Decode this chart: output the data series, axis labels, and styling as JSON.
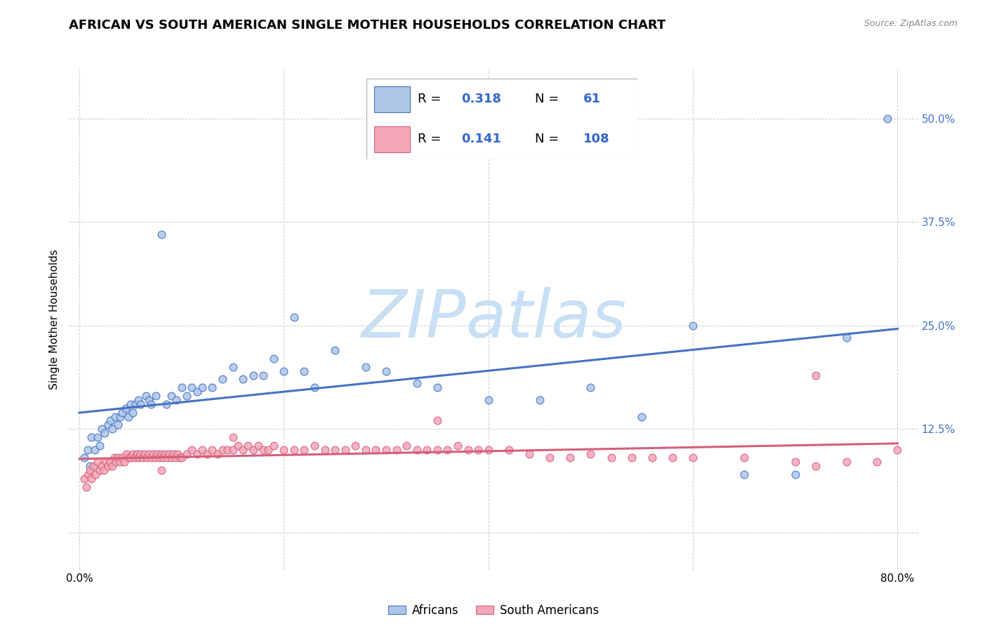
{
  "title": "AFRICAN VS SOUTH AMERICAN SINGLE MOTHER HOUSEHOLDS CORRELATION CHART",
  "source": "Source: ZipAtlas.com",
  "ylabel": "Single Mother Households",
  "african_R": 0.318,
  "african_N": 61,
  "south_american_R": 0.141,
  "south_american_N": 108,
  "african_fill_color": "#aec6e8",
  "african_edge_color": "#4472c4",
  "sa_fill_color": "#f4a7b9",
  "sa_edge_color": "#d45f7a",
  "african_line_color": "#4472c4",
  "sa_line_color": "#d45f7a",
  "legend_text_color": "#3366cc",
  "watermark_color": "#c8dff5",
  "grid_color": "#cccccc",
  "background_color": "#ffffff",
  "title_fontsize": 13,
  "tick_fontsize": 11,
  "ylabel_fontsize": 11,
  "legend_fontsize": 13,
  "ytick_positions": [
    0.0,
    0.125,
    0.25,
    0.375,
    0.5
  ],
  "ytick_labels": [
    "",
    "12.5%",
    "25.0%",
    "37.5%",
    "50.0%"
  ],
  "xlim": [
    -0.01,
    0.82
  ],
  "ylim": [
    -0.045,
    0.56
  ],
  "african_x": [
    0.005,
    0.008,
    0.01,
    0.012,
    0.015,
    0.018,
    0.02,
    0.022,
    0.025,
    0.028,
    0.03,
    0.032,
    0.035,
    0.038,
    0.04,
    0.042,
    0.045,
    0.048,
    0.05,
    0.052,
    0.055,
    0.058,
    0.06,
    0.065,
    0.068,
    0.07,
    0.075,
    0.08,
    0.085,
    0.09,
    0.095,
    0.1,
    0.105,
    0.11,
    0.115,
    0.12,
    0.13,
    0.14,
    0.15,
    0.16,
    0.17,
    0.18,
    0.19,
    0.2,
    0.21,
    0.22,
    0.23,
    0.25,
    0.28,
    0.3,
    0.33,
    0.35,
    0.4,
    0.45,
    0.5,
    0.55,
    0.6,
    0.65,
    0.7,
    0.75,
    0.79
  ],
  "african_y": [
    0.09,
    0.1,
    0.08,
    0.115,
    0.1,
    0.115,
    0.105,
    0.125,
    0.12,
    0.13,
    0.135,
    0.125,
    0.14,
    0.13,
    0.14,
    0.145,
    0.15,
    0.14,
    0.155,
    0.145,
    0.155,
    0.16,
    0.155,
    0.165,
    0.16,
    0.155,
    0.165,
    0.36,
    0.155,
    0.165,
    0.16,
    0.175,
    0.165,
    0.175,
    0.17,
    0.175,
    0.175,
    0.185,
    0.2,
    0.185,
    0.19,
    0.19,
    0.21,
    0.195,
    0.26,
    0.195,
    0.175,
    0.22,
    0.2,
    0.195,
    0.18,
    0.175,
    0.16,
    0.16,
    0.175,
    0.14,
    0.25,
    0.07,
    0.07,
    0.235,
    0.5
  ],
  "sa_x": [
    0.005,
    0.007,
    0.009,
    0.01,
    0.012,
    0.014,
    0.016,
    0.018,
    0.02,
    0.022,
    0.024,
    0.026,
    0.028,
    0.03,
    0.032,
    0.034,
    0.036,
    0.038,
    0.04,
    0.042,
    0.044,
    0.046,
    0.048,
    0.05,
    0.052,
    0.054,
    0.056,
    0.058,
    0.06,
    0.062,
    0.064,
    0.066,
    0.068,
    0.07,
    0.072,
    0.074,
    0.076,
    0.078,
    0.08,
    0.082,
    0.084,
    0.086,
    0.088,
    0.09,
    0.092,
    0.094,
    0.096,
    0.098,
    0.1,
    0.105,
    0.11,
    0.115,
    0.12,
    0.125,
    0.13,
    0.135,
    0.14,
    0.145,
    0.15,
    0.155,
    0.16,
    0.165,
    0.17,
    0.175,
    0.18,
    0.185,
    0.19,
    0.2,
    0.21,
    0.22,
    0.23,
    0.24,
    0.25,
    0.26,
    0.27,
    0.28,
    0.29,
    0.3,
    0.31,
    0.32,
    0.33,
    0.34,
    0.35,
    0.36,
    0.37,
    0.38,
    0.39,
    0.4,
    0.42,
    0.44,
    0.46,
    0.48,
    0.5,
    0.52,
    0.54,
    0.56,
    0.58,
    0.6,
    0.65,
    0.7,
    0.72,
    0.75,
    0.78,
    0.8,
    0.72,
    0.35,
    0.15,
    0.08
  ],
  "sa_y": [
    0.065,
    0.055,
    0.07,
    0.075,
    0.065,
    0.08,
    0.07,
    0.085,
    0.075,
    0.08,
    0.075,
    0.085,
    0.08,
    0.085,
    0.08,
    0.09,
    0.085,
    0.09,
    0.085,
    0.09,
    0.085,
    0.095,
    0.09,
    0.09,
    0.095,
    0.09,
    0.095,
    0.09,
    0.095,
    0.09,
    0.095,
    0.09,
    0.095,
    0.09,
    0.095,
    0.09,
    0.095,
    0.09,
    0.095,
    0.09,
    0.095,
    0.09,
    0.095,
    0.09,
    0.095,
    0.09,
    0.095,
    0.09,
    0.09,
    0.095,
    0.1,
    0.095,
    0.1,
    0.095,
    0.1,
    0.095,
    0.1,
    0.1,
    0.1,
    0.105,
    0.1,
    0.105,
    0.1,
    0.105,
    0.1,
    0.1,
    0.105,
    0.1,
    0.1,
    0.1,
    0.105,
    0.1,
    0.1,
    0.1,
    0.105,
    0.1,
    0.1,
    0.1,
    0.1,
    0.105,
    0.1,
    0.1,
    0.1,
    0.1,
    0.105,
    0.1,
    0.1,
    0.1,
    0.1,
    0.095,
    0.09,
    0.09,
    0.095,
    0.09,
    0.09,
    0.09,
    0.09,
    0.09,
    0.09,
    0.085,
    0.08,
    0.085,
    0.085,
    0.1,
    0.19,
    0.135,
    0.115,
    0.075
  ]
}
